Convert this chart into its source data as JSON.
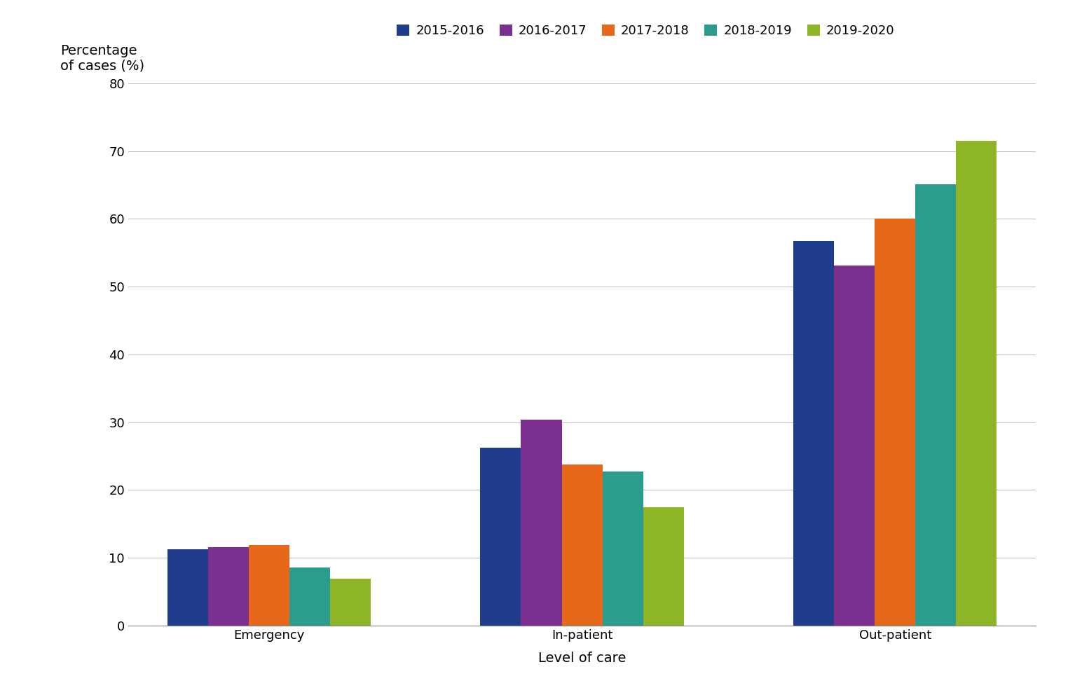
{
  "categories": [
    "Emergency",
    "In-patient",
    "Out-patient"
  ],
  "seasons": [
    "2015-2016",
    "2016-2017",
    "2017-2018",
    "2018-2019",
    "2019-2020"
  ],
  "colors": [
    "#1f3d8c",
    "#7b2f8e",
    "#e8681a",
    "#2a9d8f",
    "#8db526"
  ],
  "values": {
    "Emergency": [
      11.3,
      11.6,
      11.9,
      8.6,
      6.9
    ],
    "In-patient": [
      26.2,
      30.4,
      23.8,
      22.7,
      17.5
    ],
    "Out-patient": [
      56.7,
      53.1,
      60.0,
      65.1,
      71.5
    ]
  },
  "ylabel_line1": "Percentage",
  "ylabel_line2": "of cases (%)",
  "xlabel": "Level of care",
  "ylim": [
    0,
    80
  ],
  "yticks": [
    0,
    10,
    20,
    30,
    40,
    50,
    60,
    70,
    80
  ],
  "bar_width": 0.13,
  "background_color": "#ffffff",
  "grid_color": "#c0c0c0",
  "font_size_labels": 14,
  "font_size_ticks": 13,
  "font_size_legend": 13,
  "font_size_ylabel": 14
}
